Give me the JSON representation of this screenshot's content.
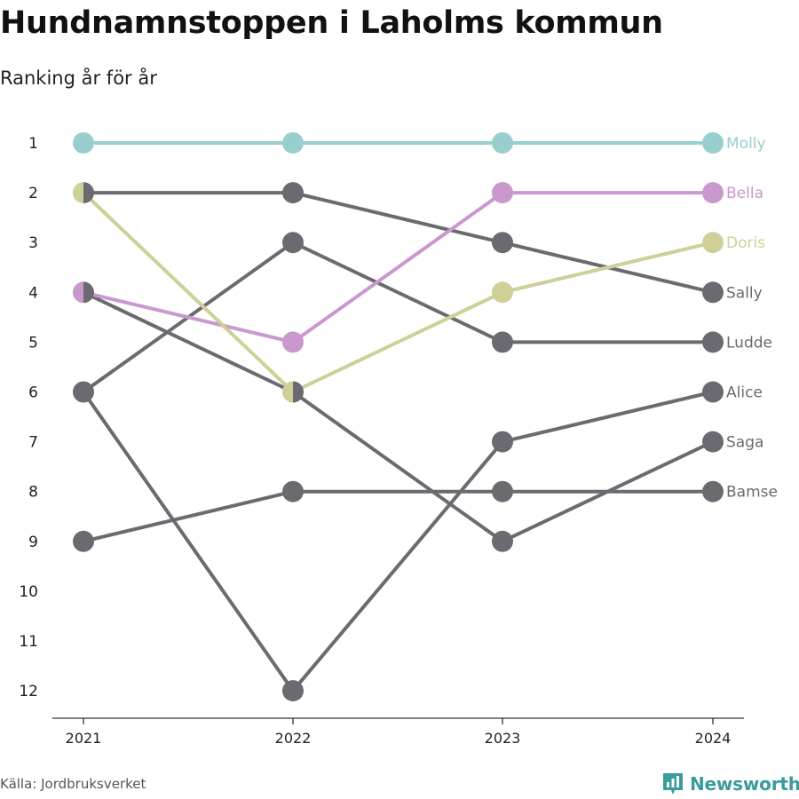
{
  "title": "Hundnamnstoppen i Laholms kommun",
  "subtitle": "Ranking år för år",
  "source": "Källa: Jordbruksverket",
  "brand": {
    "name": "Newsworthy",
    "icon": "newsworthy-logo-icon",
    "color": "#3a9c9b"
  },
  "colors": {
    "highlight_molly": "#98cfcd",
    "highlight_bella": "#c998cf",
    "highlight_doris": "#cfcf98",
    "other": "#6b6a70"
  },
  "chart_data": {
    "type": "line",
    "subtype": "bump",
    "title": "Hundnamnstoppen i Laholms kommun",
    "subtitle": "Ranking år för år",
    "x": [
      "2021",
      "2022",
      "2023",
      "2024"
    ],
    "y_ticks": [
      "1",
      "2",
      "3",
      "4",
      "5",
      "6",
      "7",
      "8",
      "9",
      "10",
      "11",
      "12"
    ],
    "y_range": [
      1,
      12
    ],
    "y_reversed": true,
    "grid": false,
    "series": [
      {
        "name": "Molly",
        "values": [
          1,
          1,
          1,
          1
        ],
        "color": "#98cfcd",
        "highlight": true
      },
      {
        "name": "Bella",
        "values": [
          4,
          5,
          2,
          2
        ],
        "color": "#c998cf",
        "highlight": true
      },
      {
        "name": "Doris",
        "values": [
          2,
          6,
          4,
          3
        ],
        "color": "#cfcf98",
        "highlight": true
      },
      {
        "name": "Sally",
        "values": [
          2,
          2,
          3,
          4
        ],
        "color": "#6b6a70",
        "highlight": false
      },
      {
        "name": "Ludde",
        "values": [
          6,
          3,
          5,
          5
        ],
        "color": "#6b6a70",
        "highlight": false
      },
      {
        "name": "Alice",
        "values": [
          6,
          12,
          7,
          6
        ],
        "color": "#6b6a70",
        "highlight": false
      },
      {
        "name": "Saga",
        "values": [
          4,
          6,
          9,
          7
        ],
        "color": "#6b6a70",
        "highlight": false
      },
      {
        "name": "Bamse",
        "values": [
          9,
          8,
          8,
          8
        ],
        "color": "#6b6a70",
        "highlight": false
      }
    ]
  }
}
